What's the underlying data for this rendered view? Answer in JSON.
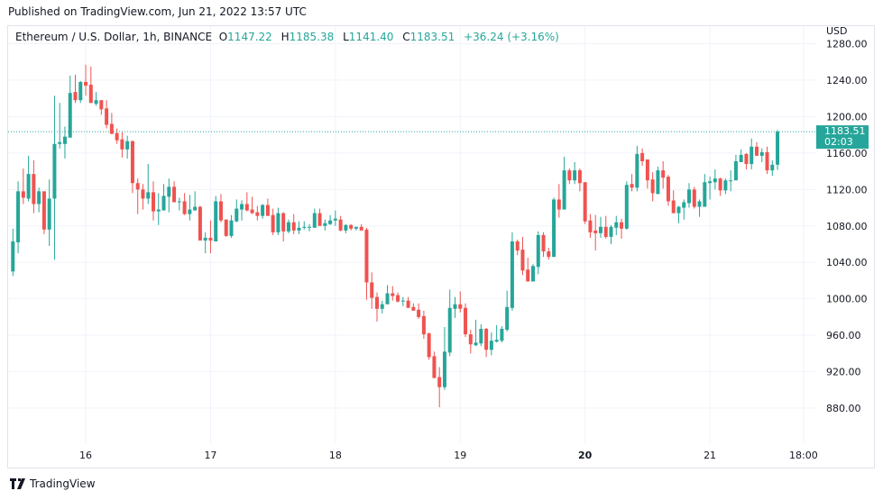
{
  "header": {
    "published": "Published on TradingView.com, Jun 21, 2022 13:57 UTC"
  },
  "legend": {
    "symbol": "Ethereum / U.S. Dollar, 1h, BINANCE",
    "o_label": "O",
    "o": "1147.22",
    "h_label": "H",
    "h": "1185.38",
    "l_label": "L",
    "l": "1141.40",
    "c_label": "C",
    "c": "1183.51",
    "change": "+36.24 (+3.16%)"
  },
  "price_axis": {
    "currency": "USD"
  },
  "last_price": {
    "value": "1183.51",
    "countdown": "02:03"
  },
  "brand": {
    "name": "TradingView"
  },
  "colors": {
    "up": "#26a69a",
    "down": "#ef5350",
    "grid": "#f0f3fa"
  },
  "chart_data": {
    "type": "candlestick",
    "title": "Ethereum / U.S. Dollar, 1h, BINANCE",
    "interval": "1h",
    "first_candle": "Jun 15 10:00",
    "ylabel": "USD",
    "ylim": [
      870,
      1290
    ],
    "y_ticks": [
      880,
      920,
      960,
      1000,
      1040,
      1080,
      1120,
      1160,
      1200,
      1240,
      1280
    ],
    "x_ticks": [
      {
        "label": "16",
        "hour_index": 14,
        "bold": false
      },
      {
        "label": "17",
        "hour_index": 38,
        "bold": false
      },
      {
        "label": "18",
        "hour_index": 62,
        "bold": false
      },
      {
        "label": "19",
        "hour_index": 86,
        "bold": false
      },
      {
        "label": "20",
        "hour_index": 110,
        "bold": true
      },
      {
        "label": "21",
        "hour_index": 134,
        "bold": false
      },
      {
        "label": "18:00",
        "hour_index": 152,
        "bold": false
      }
    ],
    "last_price": 1183.51,
    "ohlc": [
      [
        1030,
        1077,
        1025,
        1063
      ],
      [
        1062,
        1129,
        1050,
        1118
      ],
      [
        1118,
        1143,
        1104,
        1111
      ],
      [
        1110,
        1157,
        1107,
        1137
      ],
      [
        1137,
        1152,
        1094,
        1104
      ],
      [
        1104,
        1122,
        1095,
        1118
      ],
      [
        1118,
        1118,
        1071,
        1076
      ],
      [
        1076,
        1131,
        1058,
        1110
      ],
      [
        1110,
        1223,
        1043,
        1170
      ],
      [
        1170,
        1215,
        1165,
        1172
      ],
      [
        1170,
        1189,
        1154,
        1178
      ],
      [
        1177,
        1245,
        1177,
        1226
      ],
      [
        1227,
        1246,
        1215,
        1218
      ],
      [
        1218,
        1239,
        1215,
        1238
      ],
      [
        1238,
        1257,
        1223,
        1234
      ],
      [
        1235,
        1255,
        1215,
        1215
      ],
      [
        1214,
        1227,
        1212,
        1218
      ],
      [
        1218,
        1218,
        1202,
        1208
      ],
      [
        1209,
        1218,
        1187,
        1191
      ],
      [
        1192,
        1204,
        1181,
        1181
      ],
      [
        1182,
        1187,
        1170,
        1174
      ],
      [
        1175,
        1183,
        1155,
        1164
      ],
      [
        1164,
        1179,
        1154,
        1173
      ],
      [
        1173,
        1174,
        1116,
        1127
      ],
      [
        1127,
        1132,
        1093,
        1120
      ],
      [
        1120,
        1126,
        1098,
        1110
      ],
      [
        1110,
        1148,
        1104,
        1117
      ],
      [
        1117,
        1129,
        1086,
        1096
      ],
      [
        1096,
        1116,
        1081,
        1098
      ],
      [
        1097,
        1126,
        1097,
        1113
      ],
      [
        1112,
        1132,
        1095,
        1123
      ],
      [
        1123,
        1129,
        1106,
        1106
      ],
      [
        1106,
        1111,
        1097,
        1107
      ],
      [
        1107,
        1116,
        1092,
        1093
      ],
      [
        1093,
        1114,
        1086,
        1098
      ],
      [
        1097,
        1118,
        1097,
        1101
      ],
      [
        1101,
        1102,
        1064,
        1064
      ],
      [
        1064,
        1073,
        1050,
        1067
      ],
      [
        1067,
        1086,
        1050,
        1064
      ],
      [
        1063,
        1113,
        1063,
        1107
      ],
      [
        1107,
        1115,
        1084,
        1086
      ],
      [
        1087,
        1087,
        1068,
        1069
      ],
      [
        1069,
        1092,
        1067,
        1086
      ],
      [
        1085,
        1109,
        1084,
        1099
      ],
      [
        1098,
        1108,
        1086,
        1104
      ],
      [
        1104,
        1117,
        1096,
        1097
      ],
      [
        1098,
        1112,
        1093,
        1094
      ],
      [
        1095,
        1102,
        1086,
        1091
      ],
      [
        1091,
        1104,
        1088,
        1103
      ],
      [
        1103,
        1110,
        1091,
        1091
      ],
      [
        1092,
        1099,
        1070,
        1073
      ],
      [
        1073,
        1100,
        1070,
        1094
      ],
      [
        1094,
        1095,
        1063,
        1074
      ],
      [
        1074,
        1087,
        1072,
        1084
      ],
      [
        1084,
        1093,
        1071,
        1075
      ],
      [
        1075,
        1085,
        1071,
        1078
      ],
      [
        1078,
        1085,
        1076,
        1079
      ],
      [
        1078,
        1082,
        1074,
        1079
      ],
      [
        1078,
        1099,
        1078,
        1094
      ],
      [
        1094,
        1099,
        1080,
        1080
      ],
      [
        1080,
        1087,
        1075,
        1083
      ],
      [
        1082,
        1092,
        1081,
        1086
      ],
      [
        1086,
        1097,
        1080,
        1088
      ],
      [
        1087,
        1091,
        1074,
        1075
      ],
      [
        1075,
        1082,
        1072,
        1081
      ],
      [
        1081,
        1082,
        1075,
        1077
      ],
      [
        1077,
        1079,
        1075,
        1079
      ],
      [
        1079,
        1082,
        1075,
        1075
      ],
      [
        1076,
        1078,
        999,
        1018
      ],
      [
        1018,
        1029,
        989,
        1001
      ],
      [
        1002,
        1007,
        975,
        989
      ],
      [
        989,
        998,
        984,
        994
      ],
      [
        994,
        1015,
        994,
        1006
      ],
      [
        1006,
        1014,
        998,
        1003
      ],
      [
        1004,
        1007,
        996,
        997
      ],
      [
        997,
        1002,
        992,
        998
      ],
      [
        998,
        1002,
        990,
        990
      ],
      [
        991,
        995,
        987,
        987
      ],
      [
        988,
        995,
        978,
        980
      ],
      [
        981,
        987,
        956,
        961
      ],
      [
        962,
        963,
        933,
        936
      ],
      [
        937,
        942,
        913,
        913
      ],
      [
        914,
        925,
        881,
        903
      ],
      [
        903,
        969,
        900,
        942
      ],
      [
        941,
        1010,
        937,
        990
      ],
      [
        989,
        1002,
        979,
        994
      ],
      [
        994,
        1008,
        985,
        989
      ],
      [
        990,
        995,
        958,
        961
      ],
      [
        961,
        966,
        940,
        950
      ],
      [
        949,
        977,
        948,
        952
      ],
      [
        951,
        972,
        948,
        967
      ],
      [
        967,
        968,
        936,
        944
      ],
      [
        944,
        963,
        938,
        954
      ],
      [
        953,
        971,
        952,
        955
      ],
      [
        954,
        970,
        952,
        967
      ],
      [
        966,
        1009,
        964,
        991
      ],
      [
        990,
        1073,
        987,
        1063
      ],
      [
        1063,
        1065,
        1048,
        1053
      ],
      [
        1054,
        1068,
        1026,
        1031
      ],
      [
        1032,
        1045,
        1019,
        1019
      ],
      [
        1019,
        1038,
        1019,
        1036
      ],
      [
        1035,
        1074,
        1027,
        1070
      ],
      [
        1070,
        1073,
        1046,
        1052
      ],
      [
        1052,
        1056,
        1043,
        1046
      ],
      [
        1046,
        1111,
        1046,
        1109
      ],
      [
        1109,
        1126,
        1089,
        1098
      ],
      [
        1098,
        1156,
        1098,
        1141
      ],
      [
        1141,
        1143,
        1126,
        1130
      ],
      [
        1130,
        1150,
        1126,
        1141
      ],
      [
        1141,
        1143,
        1118,
        1127
      ],
      [
        1128,
        1128,
        1082,
        1085
      ],
      [
        1086,
        1093,
        1067,
        1073
      ],
      [
        1075,
        1092,
        1053,
        1072
      ],
      [
        1072,
        1090,
        1067,
        1079
      ],
      [
        1079,
        1091,
        1066,
        1068
      ],
      [
        1068,
        1081,
        1060,
        1079
      ],
      [
        1078,
        1091,
        1070,
        1084
      ],
      [
        1084,
        1088,
        1066,
        1077
      ],
      [
        1077,
        1129,
        1076,
        1125
      ],
      [
        1126,
        1137,
        1118,
        1122
      ],
      [
        1122,
        1168,
        1118,
        1159
      ],
      [
        1160,
        1165,
        1146,
        1151
      ],
      [
        1153,
        1153,
        1121,
        1130
      ],
      [
        1131,
        1139,
        1107,
        1116
      ],
      [
        1115,
        1145,
        1115,
        1141
      ],
      [
        1141,
        1151,
        1121,
        1133
      ],
      [
        1134,
        1136,
        1102,
        1107
      ],
      [
        1108,
        1119,
        1094,
        1094
      ],
      [
        1094,
        1102,
        1083,
        1101
      ],
      [
        1100,
        1109,
        1087,
        1106
      ],
      [
        1105,
        1127,
        1100,
        1120
      ],
      [
        1120,
        1123,
        1099,
        1101
      ],
      [
        1101,
        1109,
        1090,
        1107
      ],
      [
        1101,
        1137,
        1101,
        1128
      ],
      [
        1127,
        1134,
        1109,
        1129
      ],
      [
        1128,
        1142,
        1120,
        1132
      ],
      [
        1132,
        1133,
        1113,
        1119
      ],
      [
        1119,
        1132,
        1115,
        1130
      ],
      [
        1129,
        1141,
        1118,
        1130
      ],
      [
        1130,
        1158,
        1130,
        1151
      ],
      [
        1150,
        1164,
        1150,
        1158
      ],
      [
        1159,
        1160,
        1142,
        1148
      ],
      [
        1148,
        1176,
        1142,
        1167
      ],
      [
        1167,
        1172,
        1157,
        1157
      ],
      [
        1157,
        1165,
        1150,
        1161
      ],
      [
        1161,
        1167,
        1137,
        1141
      ],
      [
        1141,
        1152,
        1135,
        1147.22
      ],
      [
        1147.22,
        1185.38,
        1141.4,
        1183.51
      ]
    ]
  }
}
